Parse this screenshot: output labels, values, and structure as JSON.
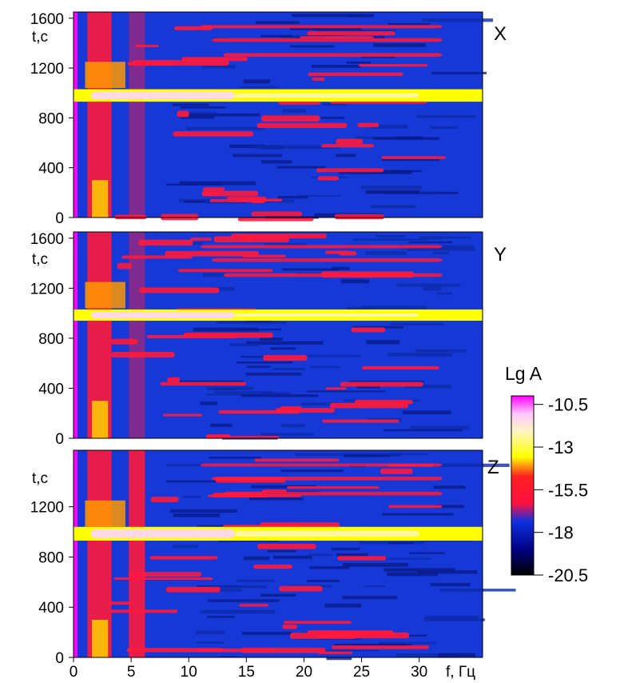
{
  "chart_data": {
    "type": "heatmap",
    "panels": [
      {
        "label": "X",
        "ylabel": "t,c",
        "yticks": [
          "0",
          "400",
          "800",
          "1200",
          "1600"
        ],
        "ylim": [
          0,
          1650
        ],
        "band_t": [
          930,
          1030
        ]
      },
      {
        "label": "Y",
        "ylabel": "t,c",
        "yticks": [
          "0",
          "400",
          "800",
          "1200",
          "1600"
        ],
        "ylim": [
          0,
          1650
        ],
        "band_t": [
          940,
          1030
        ]
      },
      {
        "label": "Z",
        "ylabel": "t,c",
        "yticks": [
          "0",
          "400",
          "800",
          "1200"
        ],
        "ylim": [
          0,
          1650
        ],
        "band_t": [
          930,
          1040
        ]
      }
    ],
    "x_axis": {
      "ticks": [
        "0",
        "5",
        "10",
        "15",
        "20",
        "25",
        "30"
      ],
      "label": "f,  Гц",
      "xlim": [
        0,
        35.5
      ]
    },
    "colorbar": {
      "title": "Lg  A",
      "ticks": [
        "-10.5",
        "-13",
        "-15.5",
        "-18",
        "-20.5"
      ],
      "range": [
        -20.5,
        -10.0
      ],
      "colors": [
        "#000000",
        "#000080",
        "#1030e0",
        "#ff1040",
        "#ffff00",
        "#fff0ff",
        "#ff00ff"
      ]
    },
    "grid": false
  }
}
